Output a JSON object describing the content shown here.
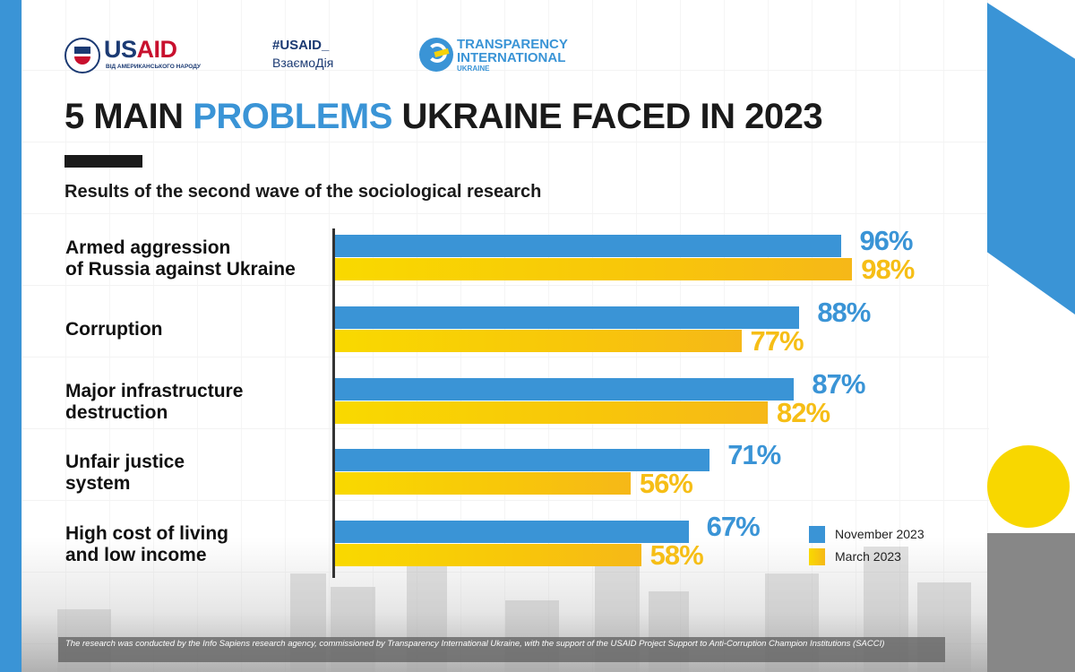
{
  "logos": {
    "usaid": {
      "us": "US",
      "aid": "AID",
      "tagline": "ВІД АМЕРИКАНСЬКОГО НАРОДУ"
    },
    "hashtag": "#USAID_",
    "vzaemodiya": "ВзаємоДія",
    "ti": {
      "line1": "TRANSPARENCY",
      "line2": "INTERNATIONAL",
      "line3": "UKRAINE"
    }
  },
  "title": {
    "prefix": "5 MAIN ",
    "highlight": "PROBLEMS",
    "suffix": " UKRAINE FACED IN 2023"
  },
  "subtitle": "Results of the second wave of the sociological research",
  "colors": {
    "november": "#3a94d6",
    "march": "#f8c60a",
    "text": "#1a1a1a"
  },
  "chart_data": {
    "type": "bar",
    "orientation": "horizontal",
    "title": "5 MAIN PROBLEMS UKRAINE FACED IN 2023",
    "subtitle": "Results of the second wave of the sociological research",
    "categories": [
      "Armed aggression\nof Russia against Ukraine",
      "Corruption",
      "Major infrastructure\ndestruction",
      "Unfair justice\nsystem",
      "High cost of living\nand low income"
    ],
    "category_lines": [
      [
        "Armed aggression",
        "of Russia against Ukraine"
      ],
      [
        "Corruption"
      ],
      [
        "Major infrastructure",
        "destruction"
      ],
      [
        "Unfair justice",
        "system"
      ],
      [
        "High cost of living",
        "and low income"
      ]
    ],
    "series": [
      {
        "name": "November 2023",
        "values": [
          96,
          88,
          87,
          71,
          67
        ],
        "labels": [
          "96%",
          "88%",
          "87%",
          "71%",
          "67%"
        ]
      },
      {
        "name": "March 2023",
        "values": [
          98,
          77,
          82,
          56,
          58
        ],
        "labels": [
          "98%",
          "77%",
          "82%",
          "56%",
          "58%"
        ]
      }
    ],
    "unit": "%",
    "xlim": [
      0,
      100
    ],
    "grid": false,
    "legend": "bottom-right"
  },
  "legend": [
    "November 2023",
    "March 2023"
  ],
  "footer": "The research was conducted by the Info Sapiens research agency, commissioned by Transparency International Ukraine, with the support of the USAID Project Support to Anti-Corruption Champion Institutions (SACCI)"
}
